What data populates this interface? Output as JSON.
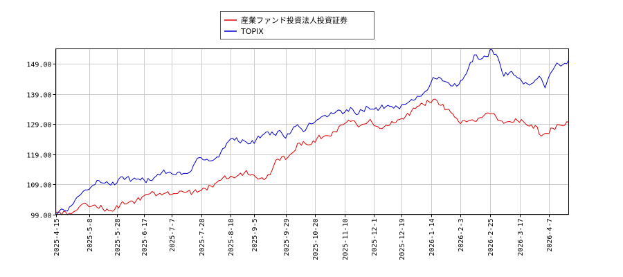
{
  "chart_data": {
    "type": "line",
    "title": "",
    "xlabel": "",
    "ylabel": "",
    "ylim": [
      99,
      154
    ],
    "y_ticks": [
      99.0,
      109.0,
      119.0,
      129.0,
      139.0,
      149.0
    ],
    "y_tick_labels": [
      "99.00",
      "109.00",
      "119.00",
      "129.00",
      "139.00",
      "149.00"
    ],
    "x_ticks": [
      {
        "label": "2025-4-15",
        "i": 0
      },
      {
        "label": "2025-5-8",
        "i": 17
      },
      {
        "label": "2025-5-28",
        "i": 31
      },
      {
        "label": "2025-6-17",
        "i": 45
      },
      {
        "label": "2025-7-7",
        "i": 59
      },
      {
        "label": "2025-7-28",
        "i": 74
      },
      {
        "label": "2025-8-18",
        "i": 89
      },
      {
        "label": "2025-9-5",
        "i": 101
      },
      {
        "label": "2025-9-29",
        "i": 117
      },
      {
        "label": "2025-10-20",
        "i": 132
      },
      {
        "label": "2025-11-10",
        "i": 147
      },
      {
        "label": "2025-12-1",
        "i": 162
      },
      {
        "label": "2025-12-19",
        "i": 176
      },
      {
        "label": "2026-1-14",
        "i": 191
      },
      {
        "label": "2026-2-3",
        "i": 206
      },
      {
        "label": "2026-2-25",
        "i": 221
      },
      {
        "label": "2026-3-17",
        "i": 236
      },
      {
        "label": "2026-4-7",
        "i": 251
      }
    ],
    "x_count": 262,
    "grid": true,
    "legend_position": "top",
    "series": [
      {
        "name": "産業ファンド投資法人投資証券",
        "color": "#dd0000",
        "keypoints": [
          [
            0,
            99.4
          ],
          [
            5,
            99.8
          ],
          [
            8,
            99.2
          ],
          [
            12,
            101.5
          ],
          [
            14,
            102.6
          ],
          [
            17,
            101.5
          ],
          [
            20,
            102.1
          ],
          [
            24,
            100.8
          ],
          [
            27,
            100.2
          ],
          [
            30,
            100.6
          ],
          [
            33,
            102.4
          ],
          [
            37,
            102.9
          ],
          [
            41,
            103.6
          ],
          [
            45,
            105.2
          ],
          [
            49,
            106.6
          ],
          [
            52,
            105.6
          ],
          [
            56,
            106.1
          ],
          [
            60,
            105.9
          ],
          [
            63,
            106.7
          ],
          [
            66,
            106.3
          ],
          [
            70,
            106.4
          ],
          [
            73,
            106.7
          ],
          [
            76,
            107.6
          ],
          [
            79,
            108.4
          ],
          [
            82,
            109.6
          ],
          [
            85,
            111.1
          ],
          [
            88,
            110.9
          ],
          [
            92,
            111.6
          ],
          [
            96,
            112.8
          ],
          [
            100,
            112.3
          ],
          [
            103,
            110.7
          ],
          [
            106,
            110.5
          ],
          [
            109,
            112.1
          ],
          [
            112,
            117.0
          ],
          [
            115,
            118.1
          ],
          [
            118,
            117.8
          ],
          [
            121,
            119.7
          ],
          [
            124,
            122.7
          ],
          [
            127,
            122.5
          ],
          [
            130,
            122.2
          ],
          [
            133,
            124.3
          ],
          [
            136,
            124.7
          ],
          [
            139,
            125.1
          ],
          [
            142,
            126.5
          ],
          [
            145,
            128.7
          ],
          [
            148,
            129.6
          ],
          [
            151,
            130.1
          ],
          [
            154,
            128.0
          ],
          [
            157,
            129.0
          ],
          [
            160,
            130.6
          ],
          [
            163,
            128.3
          ],
          [
            166,
            127.5
          ],
          [
            169,
            128.4
          ],
          [
            172,
            129.4
          ],
          [
            175,
            130.5
          ],
          [
            178,
            131.6
          ],
          [
            181,
            133.3
          ],
          [
            184,
            134.9
          ],
          [
            187,
            135.6
          ],
          [
            190,
            136.4
          ],
          [
            193,
            137.3
          ],
          [
            196,
            135.2
          ],
          [
            199,
            133.8
          ],
          [
            202,
            132.4
          ],
          [
            205,
            129.8
          ],
          [
            208,
            130.2
          ],
          [
            211,
            130.3
          ],
          [
            214,
            129.9
          ],
          [
            217,
            131.2
          ],
          [
            220,
            132.7
          ],
          [
            223,
            132.5
          ],
          [
            226,
            130.1
          ],
          [
            229,
            129.6
          ],
          [
            232,
            129.6
          ],
          [
            235,
            130.1
          ],
          [
            238,
            129.8
          ],
          [
            241,
            128.3
          ],
          [
            244,
            128.5
          ],
          [
            247,
            125.0
          ],
          [
            250,
            125.9
          ],
          [
            253,
            127.6
          ],
          [
            256,
            128.8
          ],
          [
            259,
            128.6
          ],
          [
            261,
            129.6
          ]
        ]
      },
      {
        "name": "TOPIX",
        "color": "#0000cc",
        "keypoints": [
          [
            0,
            99.6
          ],
          [
            3,
            100.8
          ],
          [
            6,
            100.1
          ],
          [
            9,
            102.6
          ],
          [
            12,
            105.2
          ],
          [
            15,
            107.1
          ],
          [
            18,
            108.1
          ],
          [
            21,
            110.3
          ],
          [
            24,
            109.4
          ],
          [
            27,
            109.1
          ],
          [
            30,
            108.8
          ],
          [
            33,
            111.4
          ],
          [
            36,
            111.2
          ],
          [
            39,
            110.5
          ],
          [
            42,
            110.8
          ],
          [
            45,
            110.4
          ],
          [
            48,
            110.3
          ],
          [
            51,
            111.6
          ],
          [
            54,
            112.9
          ],
          [
            57,
            112.8
          ],
          [
            60,
            112.2
          ],
          [
            63,
            113.1
          ],
          [
            66,
            112.6
          ],
          [
            69,
            113.5
          ],
          [
            72,
            117.6
          ],
          [
            75,
            117.1
          ],
          [
            78,
            116.8
          ],
          [
            81,
            117.4
          ],
          [
            84,
            119.6
          ],
          [
            87,
            122.6
          ],
          [
            90,
            124.3
          ],
          [
            93,
            123.2
          ],
          [
            96,
            123.4
          ],
          [
            99,
            122.5
          ],
          [
            102,
            123.8
          ],
          [
            105,
            125.2
          ],
          [
            108,
            126.4
          ],
          [
            111,
            125.6
          ],
          [
            114,
            126.9
          ],
          [
            117,
            124.3
          ],
          [
            120,
            126.6
          ],
          [
            123,
            128.8
          ],
          [
            126,
            126.5
          ],
          [
            129,
            129.3
          ],
          [
            132,
            129.8
          ],
          [
            135,
            131.3
          ],
          [
            138,
            131.4
          ],
          [
            141,
            132.5
          ],
          [
            144,
            133.7
          ],
          [
            147,
            132.9
          ],
          [
            150,
            134.5
          ],
          [
            153,
            132.1
          ],
          [
            156,
            133.5
          ],
          [
            159,
            134.5
          ],
          [
            162,
            133.9
          ],
          [
            165,
            134.3
          ],
          [
            168,
            134.8
          ],
          [
            171,
            134.8
          ],
          [
            174,
            134.6
          ],
          [
            177,
            135.6
          ],
          [
            180,
            136.5
          ],
          [
            183,
            137.2
          ],
          [
            186,
            138.3
          ],
          [
            189,
            140.2
          ],
          [
            192,
            144.5
          ],
          [
            195,
            144.6
          ],
          [
            198,
            143.2
          ],
          [
            201,
            141.7
          ],
          [
            204,
            141.6
          ],
          [
            207,
            143.7
          ],
          [
            210,
            147.6
          ],
          [
            213,
            152.0
          ],
          [
            216,
            150.5
          ],
          [
            219,
            151.4
          ],
          [
            222,
            153.7
          ],
          [
            225,
            151.1
          ],
          [
            228,
            144.9
          ],
          [
            231,
            146.2
          ],
          [
            234,
            145.0
          ],
          [
            237,
            143.4
          ],
          [
            240,
            142.4
          ],
          [
            243,
            142.7
          ],
          [
            246,
            144.9
          ],
          [
            249,
            141.0
          ],
          [
            252,
            146.1
          ],
          [
            255,
            149.3
          ],
          [
            258,
            148.7
          ],
          [
            261,
            150.2
          ]
        ]
      }
    ]
  }
}
